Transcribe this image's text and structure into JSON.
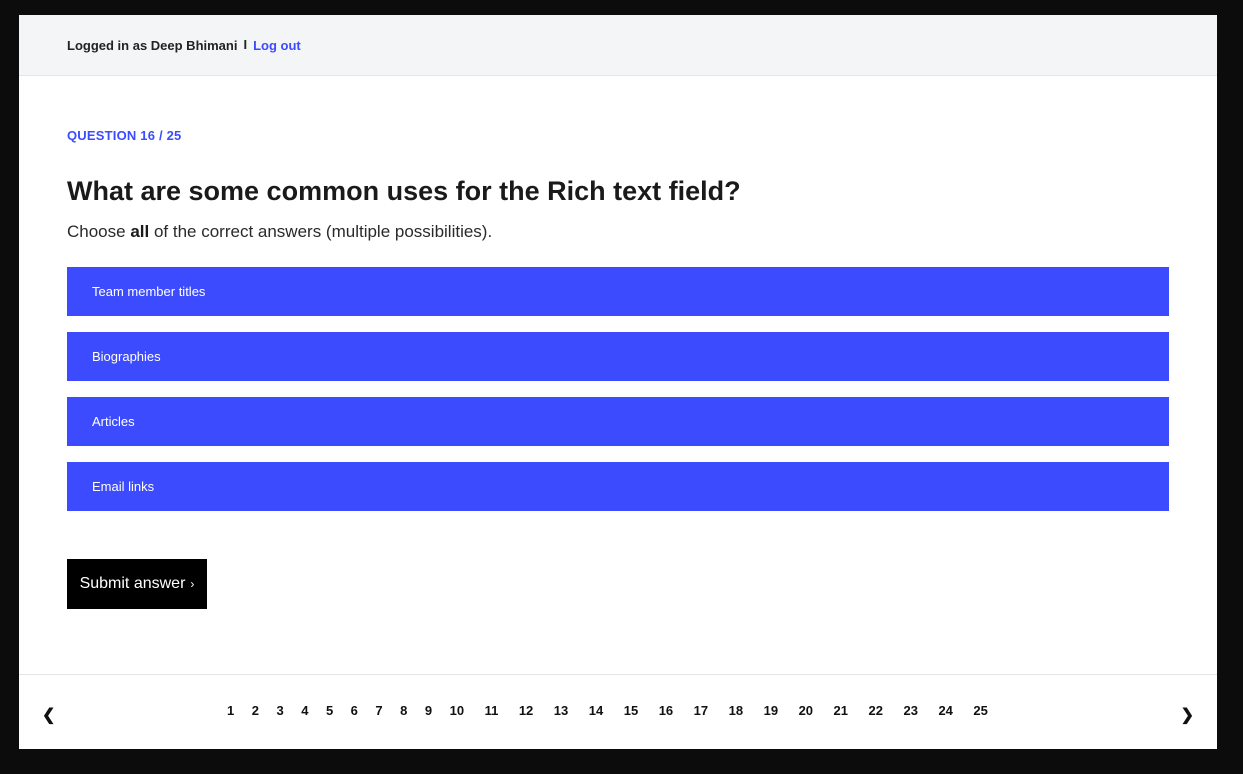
{
  "header": {
    "logged_in_text": "Logged in as Deep Bhimani",
    "separator": "I",
    "logout_label": "Log out"
  },
  "question": {
    "counter": "QUESTION 16 / 25",
    "title": "What are some common uses for the Rich text field?",
    "instruction_prefix": "Choose ",
    "instruction_bold": "all",
    "instruction_suffix": " of the correct answers (multiple possibilities)."
  },
  "options": [
    {
      "label": "Team member titles"
    },
    {
      "label": "Biographies"
    },
    {
      "label": "Articles"
    },
    {
      "label": "Email links"
    }
  ],
  "submit": {
    "label": "Submit answer",
    "chevron": "›"
  },
  "pagination": {
    "prev": "❮",
    "next": "❯",
    "pages": [
      "1",
      "2",
      "3",
      "4",
      "5",
      "6",
      "7",
      "8",
      "9",
      "10",
      "11",
      "12",
      "13",
      "14",
      "15",
      "16",
      "17",
      "18",
      "19",
      "20",
      "21",
      "22",
      "23",
      "24",
      "25"
    ]
  },
  "colors": {
    "accent": "#3d4bff",
    "submit_bg": "#000000"
  }
}
